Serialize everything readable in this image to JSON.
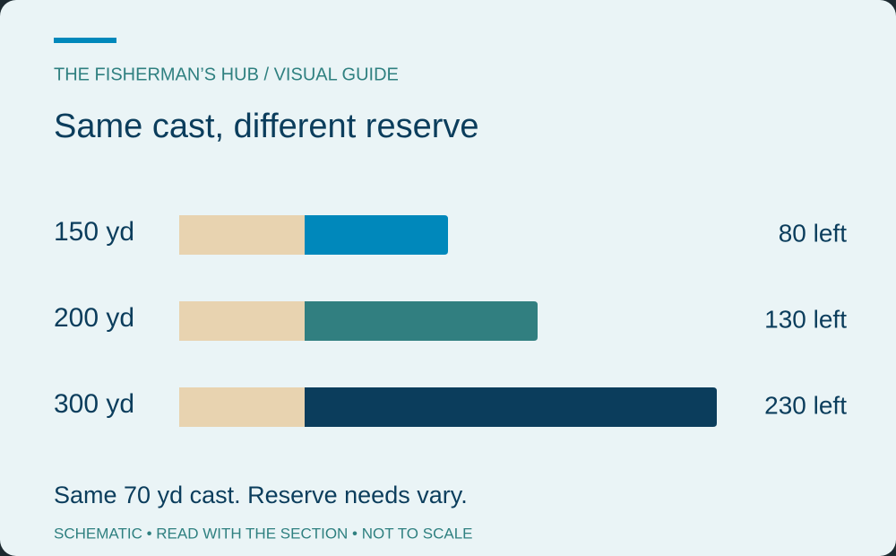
{
  "chart_data": {
    "type": "stacked-bar",
    "orientation": "horizontal",
    "eyebrow": "THE FISHERMAN’S HUB / VISUAL GUIDE",
    "title": "Same cast, different reserve",
    "categories": [
      "150 yd",
      "200 yd",
      "300 yd"
    ],
    "series": [
      {
        "color": "#e8d3b0",
        "values": [
          70,
          70,
          70
        ]
      },
      {
        "colors": [
          "#0088bb",
          "#317f80",
          "#0b3d5c"
        ],
        "values": [
          80,
          130,
          230
        ],
        "value_labels": [
          "80 left",
          "130 left",
          "230 left"
        ]
      }
    ],
    "xlim": [
      0,
      300
    ],
    "caption": "Same 70 yd cast. Reserve needs vary.",
    "footnote": "SCHEMATIC • READ WITH THE SECTION • NOT TO SCALE"
  }
}
